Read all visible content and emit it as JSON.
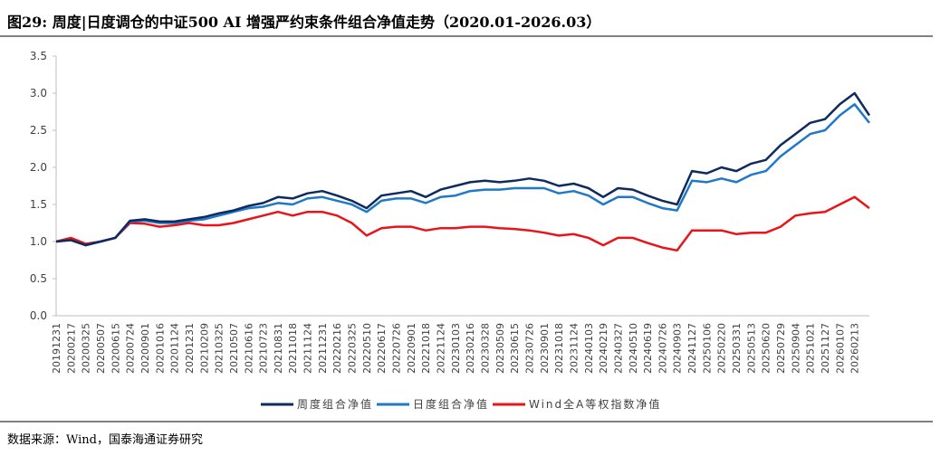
{
  "chart_data": {
    "type": "line",
    "title": "图29: 周度|日度调仓的中证500 AI 增强严约束条件组合净值走势（2020.01-2026.03）",
    "source": "数据来源：Wind，国泰海通证券研究",
    "categories": [
      "20191231",
      "20200217",
      "20200325",
      "20200507",
      "20200615",
      "20200724",
      "20200901",
      "20201016",
      "20201124",
      "20201231",
      "20210209",
      "20210325",
      "20210507",
      "20210616",
      "20210723",
      "20210831",
      "20211018",
      "20211124",
      "20211231",
      "20220216",
      "20220325",
      "20220510",
      "20220617",
      "20220726",
      "20220901",
      "20221018",
      "20221124",
      "20230103",
      "20230216",
      "20230328",
      "20230509",
      "20230615",
      "20230726",
      "20230901",
      "20231018",
      "20231124",
      "20240103",
      "20240219",
      "20240327",
      "20240510",
      "20240619",
      "20240726",
      "20240903",
      "20241127",
      "20250106",
      "20250220",
      "20250331",
      "20250513",
      "20250620",
      "20250729",
      "20250904",
      "20251021",
      "20251127",
      "20260107",
      "20260213",
      null
    ],
    "series": [
      {
        "name": "周度组合净值",
        "color": "#0e2a5e",
        "values": [
          1.0,
          1.02,
          0.95,
          1.0,
          1.05,
          1.28,
          1.3,
          1.27,
          1.27,
          1.3,
          1.33,
          1.38,
          1.42,
          1.48,
          1.52,
          1.6,
          1.58,
          1.65,
          1.68,
          1.62,
          1.55,
          1.45,
          1.62,
          1.65,
          1.68,
          1.6,
          1.7,
          1.75,
          1.8,
          1.82,
          1.8,
          1.82,
          1.85,
          1.82,
          1.75,
          1.78,
          1.72,
          1.6,
          1.72,
          1.7,
          1.62,
          1.55,
          1.5,
          1.95,
          1.92,
          2.0,
          1.95,
          2.05,
          2.1,
          2.3,
          2.45,
          2.6,
          2.65,
          2.85,
          3.0,
          2.7
        ]
      },
      {
        "name": "日度组合净值",
        "color": "#1f78c8",
        "values": [
          1.0,
          1.02,
          0.95,
          1.0,
          1.05,
          1.27,
          1.28,
          1.25,
          1.25,
          1.28,
          1.3,
          1.35,
          1.4,
          1.45,
          1.47,
          1.52,
          1.5,
          1.58,
          1.6,
          1.55,
          1.5,
          1.4,
          1.55,
          1.58,
          1.58,
          1.52,
          1.6,
          1.62,
          1.68,
          1.7,
          1.7,
          1.72,
          1.72,
          1.72,
          1.65,
          1.68,
          1.62,
          1.5,
          1.6,
          1.6,
          1.52,
          1.45,
          1.42,
          1.82,
          1.8,
          1.85,
          1.8,
          1.9,
          1.95,
          2.15,
          2.3,
          2.45,
          2.5,
          2.7,
          2.85,
          2.6
        ]
      },
      {
        "name": "Wind全A等权指数净值",
        "color": "#e8141a",
        "values": [
          1.0,
          1.05,
          0.97,
          1.0,
          1.05,
          1.25,
          1.24,
          1.2,
          1.22,
          1.25,
          1.22,
          1.22,
          1.25,
          1.3,
          1.35,
          1.4,
          1.35,
          1.4,
          1.4,
          1.35,
          1.25,
          1.08,
          1.18,
          1.2,
          1.2,
          1.15,
          1.18,
          1.18,
          1.2,
          1.2,
          1.18,
          1.17,
          1.15,
          1.12,
          1.08,
          1.1,
          1.05,
          0.95,
          1.05,
          1.05,
          0.98,
          0.92,
          0.88,
          1.15,
          1.15,
          1.15,
          1.1,
          1.12,
          1.12,
          1.2,
          1.35,
          1.38,
          1.4,
          1.5,
          1.6,
          1.45
        ]
      }
    ],
    "ylim": [
      0,
      3.5
    ],
    "yticks": [
      {
        "value": 0,
        "label": "0.0"
      },
      {
        "value": 0.5,
        "label": "0.5"
      },
      {
        "value": 1,
        "label": "1.0"
      },
      {
        "value": 1.5,
        "label": "1.5"
      },
      {
        "value": 2,
        "label": "2.0"
      },
      {
        "value": 2.5,
        "label": "2.5"
      },
      {
        "value": 3,
        "label": "3.0"
      },
      {
        "value": 3.5,
        "label": "3.5"
      }
    ],
    "grid": false,
    "legend": "bottom"
  }
}
